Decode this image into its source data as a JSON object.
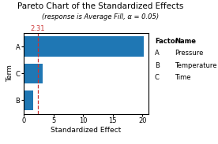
{
  "chart_data": {
    "type": "bar",
    "orientation": "horizontal",
    "title": "Pareto Chart of the Standardized Effects",
    "subtitle": "(response is Average Fill, α = 0.05)",
    "xlabel": "Standardized Effect",
    "ylabel": "Term",
    "categories": [
      "B",
      "C",
      "A"
    ],
    "values": [
      1.5,
      3.1,
      20.3
    ],
    "xlim": [
      0,
      21
    ],
    "xticks": [
      0,
      5,
      10,
      15,
      20
    ],
    "reference_line": {
      "value": 2.31,
      "color": "#cc3333"
    },
    "factor_table": {
      "header": [
        "Factor",
        "Name"
      ],
      "rows": [
        [
          "A",
          "Pressure"
        ],
        [
          "B",
          "Temperature"
        ],
        [
          "C",
          "Time"
        ]
      ]
    }
  }
}
